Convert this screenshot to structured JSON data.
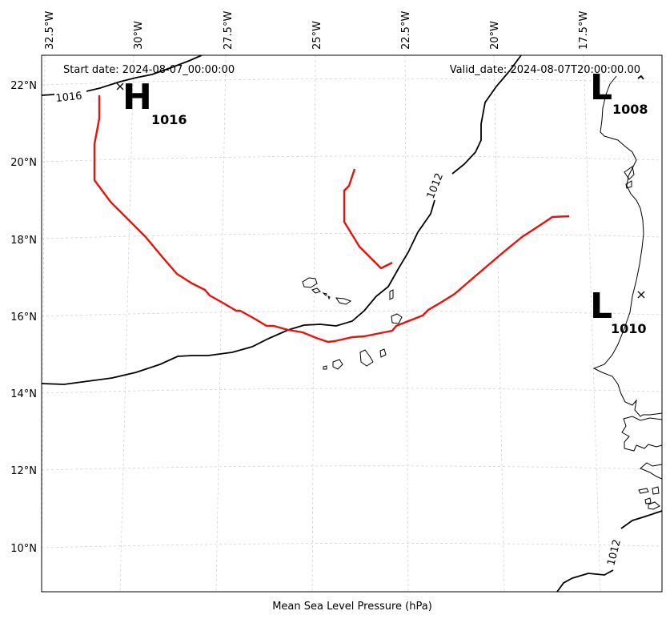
{
  "header": {
    "start_date": "Start date: 2024-08-07_00:00:00",
    "valid_date": "Valid_date: 2024-08-07T20:00:00.00"
  },
  "caption": "Mean Sea Level Pressure (hPa)",
  "axes": {
    "lon_ticks": [
      "32.5°W",
      "30°W",
      "27.5°W",
      "25°W",
      "22.5°W",
      "20°W",
      "17.5°W"
    ],
    "lat_ticks": [
      "22°N",
      "20°N",
      "18°N",
      "16°N",
      "14°N",
      "12°N",
      "10°N"
    ]
  },
  "isobar_labels": [
    "1016",
    "1012",
    "1012"
  ],
  "pressure_centers": [
    {
      "type": "H",
      "value": "1016"
    },
    {
      "type": "L",
      "value": "1008"
    },
    {
      "type": "L",
      "value": "1010"
    }
  ],
  "colors": {
    "track": "#e8120c",
    "isobar": "#000000",
    "grid": "#cccccc"
  }
}
